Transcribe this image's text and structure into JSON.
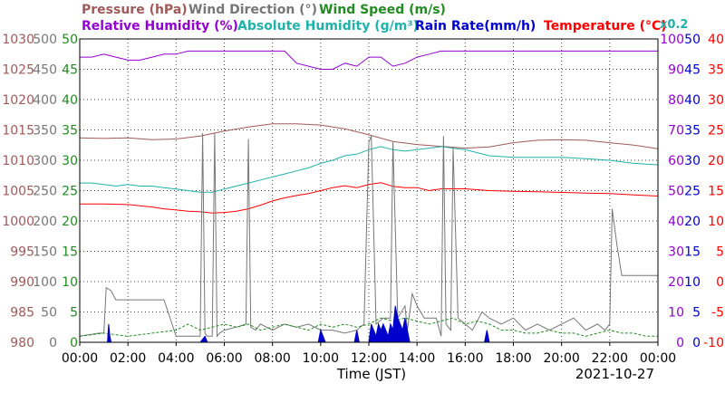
{
  "chart_data": {
    "type": "line",
    "legend_row1": [
      {
        "name": "Pressure (hPa)",
        "color": "#a05a5a"
      },
      {
        "name": "Wind Direction (°)",
        "color": "#777777"
      },
      {
        "name": "Wind Speed (m/s)",
        "color": "#228b22"
      }
    ],
    "legend_row2": [
      {
        "name": "Relative Humidity (%)",
        "color": "#9400d3"
      },
      {
        "name": "Absolute Humidity (g/m³)",
        "color": "#20b2aa"
      },
      {
        "name": "Rain Rate(mm/h)",
        "color": "#0000cd"
      },
      {
        "name": "Temperature (°C)",
        "color": "#ff0000"
      }
    ],
    "scale_note": "x0.2",
    "xlabel": "Time (JST)",
    "date": "2021-10-27",
    "x_ticks": [
      "00:00",
      "02:00",
      "04:00",
      "06:00",
      "08:00",
      "10:00",
      "12:00",
      "14:00",
      "16:00",
      "18:00",
      "20:00",
      "22:00",
      "00:00"
    ],
    "axes": {
      "pressure": {
        "ticks": [
          "1030",
          "1025",
          "1020",
          "1015",
          "1010",
          "1005",
          "1000",
          "995",
          "990",
          "985",
          "980"
        ],
        "range": [
          980,
          1030
        ],
        "color": "#a05a5a"
      },
      "wind_direction": {
        "ticks": [
          "500",
          "450",
          "400",
          "350",
          "300",
          "250",
          "200",
          "150",
          "100",
          "50",
          "0"
        ],
        "range": [
          0,
          500
        ],
        "color": "#777777"
      },
      "wind_speed": {
        "ticks": [
          "50",
          "45",
          "40",
          "35",
          "30",
          "25",
          "20",
          "15",
          "10",
          "5",
          "0"
        ],
        "range": [
          0,
          50
        ],
        "color": "#228b22"
      },
      "humidity": {
        "ticks": [
          "100",
          "90",
          "80",
          "70",
          "60",
          "50",
          "40",
          "30",
          "20",
          "10",
          "0"
        ],
        "range": [
          0,
          100
        ],
        "color": "#9400d3"
      },
      "rain_rate": {
        "ticks": [
          "50",
          "45",
          "40",
          "35",
          "30",
          "25",
          "20",
          "15",
          "10",
          "5",
          "0"
        ],
        "range": [
          0,
          50
        ],
        "color": "#0000cd"
      },
      "temperature": {
        "ticks": [
          "40",
          "35",
          "30",
          "25",
          "20",
          "15",
          "10",
          "5",
          "0",
          "-5",
          "-10"
        ],
        "range": [
          -10,
          40
        ],
        "color": "#ff0000"
      }
    },
    "grid": true,
    "series": [
      {
        "name": "Pressure (hPa)",
        "axis": "pressure",
        "color": "#a05a5a",
        "x": [
          0,
          1,
          2,
          3,
          4,
          5,
          6,
          7,
          8,
          9,
          10,
          11,
          12,
          13,
          14,
          15,
          16,
          17,
          18,
          19,
          20,
          21,
          22,
          23,
          24
        ],
        "y": [
          1013.7,
          1013.6,
          1013.7,
          1013.4,
          1013.5,
          1014.0,
          1014.8,
          1015.5,
          1016.0,
          1016.0,
          1015.8,
          1015.2,
          1014.2,
          1013.1,
          1012.6,
          1012.3,
          1012.0,
          1012.2,
          1012.9,
          1013.3,
          1013.4,
          1013.3,
          1012.9,
          1012.5,
          1011.9
        ]
      },
      {
        "name": "Relative Humidity (%)",
        "axis": "humidity",
        "color": "#9400d3",
        "x": [
          0,
          0.5,
          1,
          1.5,
          2,
          2.5,
          3,
          3.5,
          4,
          4.5,
          5,
          5.5,
          6,
          6.5,
          7,
          7.5,
          8,
          8.5,
          9,
          9.5,
          10,
          10.5,
          11,
          11.5,
          12,
          12.5,
          13,
          13.5,
          14,
          14.5,
          15,
          15.5,
          16,
          16.5,
          17,
          18,
          19,
          20,
          21,
          22,
          23,
          24
        ],
        "y": [
          94,
          94,
          95,
          94,
          93,
          93,
          94,
          95,
          95,
          96,
          96,
          96,
          96,
          96,
          96,
          96,
          96,
          96,
          92,
          91,
          90,
          90,
          92,
          91,
          94,
          94,
          91,
          92,
          94,
          95,
          96,
          96,
          96,
          96,
          96,
          96,
          96,
          96,
          96,
          96,
          96,
          96
        ]
      },
      {
        "name": "Absolute Humidity (g/m³)",
        "axis": "humidity",
        "color": "#20b2aa",
        "x": [
          0,
          0.5,
          1,
          1.5,
          2,
          2.5,
          3,
          3.5,
          4,
          4.5,
          5,
          5.5,
          6,
          6.5,
          7,
          7.5,
          8,
          8.5,
          9,
          9.5,
          10,
          10.5,
          11,
          11.5,
          12,
          12.5,
          13,
          13.5,
          14,
          14.5,
          15,
          15.5,
          16,
          17,
          18,
          19,
          20,
          21,
          22,
          23,
          24
        ],
        "y": [
          52.5,
          52.5,
          52.0,
          51.5,
          52.0,
          51.5,
          51.5,
          51.0,
          50.5,
          50.0,
          49.5,
          49.5,
          50.5,
          51.5,
          52.5,
          53.5,
          54.5,
          55.5,
          56.5,
          57.5,
          59.0,
          60.0,
          61.5,
          62.0,
          63.5,
          64.5,
          63.5,
          63.0,
          63.5,
          64.0,
          64.5,
          64.0,
          63.5,
          61.5,
          61.0,
          61.0,
          61.0,
          60.5,
          60.0,
          59.0,
          58.5
        ]
      },
      {
        "name": "Temperature (°C)",
        "axis": "temperature",
        "color": "#ff0000",
        "x": [
          0,
          1,
          2,
          3,
          3.5,
          4,
          4.5,
          5,
          5.5,
          6,
          6.5,
          7,
          7.5,
          8,
          8.5,
          9,
          9.5,
          10,
          10.5,
          11,
          11.5,
          12,
          12.5,
          13,
          13.5,
          14,
          14.5,
          15,
          16,
          17,
          18,
          19,
          20,
          21,
          22,
          23,
          24
        ],
        "y": [
          12.8,
          12.8,
          12.7,
          12.3,
          12.0,
          11.8,
          11.6,
          11.5,
          11.3,
          11.4,
          11.6,
          12.0,
          12.6,
          13.3,
          13.8,
          14.2,
          14.5,
          15.0,
          15.5,
          15.8,
          15.5,
          16.0,
          16.3,
          15.7,
          15.5,
          15.5,
          15.0,
          15.3,
          15.3,
          15.0,
          14.9,
          14.8,
          14.7,
          14.6,
          14.5,
          14.3,
          14.1
        ]
      },
      {
        "name": "Wind Direction (°)",
        "axis": "wind_direction",
        "color": "#777777",
        "x": [
          0,
          0.3,
          0.8,
          1.0,
          1.1,
          1.3,
          1.5,
          2,
          2.5,
          3,
          3.5,
          4,
          4.5,
          5,
          5.1,
          5.2,
          5.3,
          5.5,
          5.6,
          5.7,
          5.8,
          6,
          6.5,
          6.9,
          7.0,
          7.1,
          7.3,
          7.5,
          8,
          8.5,
          9,
          9.5,
          10,
          10.5,
          11,
          11.5,
          11.8,
          12.0,
          12.1,
          12.3,
          12.6,
          12.9,
          13.0,
          13.2,
          13.5,
          13.6,
          13.8,
          14,
          14.3,
          14.8,
          15,
          15.1,
          15.2,
          15.4,
          15.5,
          15.7,
          16,
          16.3,
          16.7,
          17,
          17.5,
          18,
          18.5,
          19,
          19.5,
          20,
          20.5,
          21,
          21.5,
          21.8,
          22.0,
          22.1,
          22.3,
          22.5,
          23,
          23.5,
          24
        ],
        "y": [
          10,
          12,
          15,
          15,
          90,
          85,
          70,
          70,
          70,
          70,
          70,
          10,
          10,
          10,
          345,
          15,
          10,
          10,
          345,
          10,
          15,
          20,
          25,
          30,
          335,
          25,
          20,
          30,
          20,
          30,
          25,
          30,
          20,
          20,
          15,
          20,
          30,
          330,
          340,
          30,
          40,
          40,
          330,
          40,
          60,
          20,
          80,
          60,
          40,
          40,
          10,
          340,
          30,
          20,
          320,
          40,
          30,
          20,
          50,
          40,
          30,
          40,
          20,
          30,
          20,
          30,
          40,
          20,
          30,
          20,
          30,
          220,
          160,
          110,
          110,
          110,
          110
        ]
      },
      {
        "name": "Wind Speed (m/s)",
        "axis": "wind_speed",
        "color": "#228b22",
        "x": [
          0,
          1,
          2,
          3,
          4,
          4.5,
          5,
          5.5,
          6,
          6.5,
          7,
          7.5,
          8,
          8.5,
          9,
          9.5,
          10,
          10.5,
          11,
          11.5,
          12,
          12.5,
          13,
          13.5,
          14,
          14.5,
          15,
          15.5,
          16,
          16.5,
          17,
          17.5,
          18,
          18.5,
          19,
          19.5,
          20,
          20.5,
          21,
          21.5,
          22,
          22.5,
          23,
          23.5,
          24
        ],
        "y": [
          1,
          1.5,
          1,
          1.5,
          2,
          3,
          2,
          2.5,
          3,
          2.5,
          3,
          2,
          2.5,
          3,
          2.5,
          2,
          3,
          2.5,
          3,
          2.5,
          3,
          4,
          3.5,
          4,
          3.5,
          3,
          3.5,
          4,
          3,
          3.5,
          3,
          2,
          2,
          1.5,
          1.5,
          2,
          1.5,
          1.5,
          1,
          1.5,
          2,
          1.5,
          1.5,
          1,
          1
        ]
      },
      {
        "name": "Rain Rate(mm/h)",
        "axis": "rain_rate",
        "color": "#0000cd",
        "x": [
          0,
          1.15,
          1.2,
          1.25,
          1.3,
          2,
          5,
          5.2,
          5.3,
          6,
          9.9,
          10.0,
          10.1,
          10.2,
          11,
          11.4,
          11.5,
          11.6,
          12.0,
          12.1,
          12.2,
          12.3,
          12.4,
          12.5,
          12.6,
          12.7,
          12.8,
          12.9,
          13.0,
          13.1,
          13.2,
          13.3,
          13.4,
          13.5,
          13.6,
          13.7,
          14,
          16.8,
          16.9,
          17.0,
          18,
          24
        ],
        "y": [
          0,
          0,
          3,
          1,
          0,
          0,
          0,
          1,
          0,
          0,
          0,
          2,
          1,
          0,
          0,
          0,
          2,
          0,
          0,
          3,
          2,
          1,
          3,
          2,
          3,
          2,
          1,
          3,
          2,
          6,
          4,
          3,
          2,
          4,
          2,
          0,
          0,
          0,
          2,
          0,
          0,
          0
        ]
      }
    ]
  }
}
